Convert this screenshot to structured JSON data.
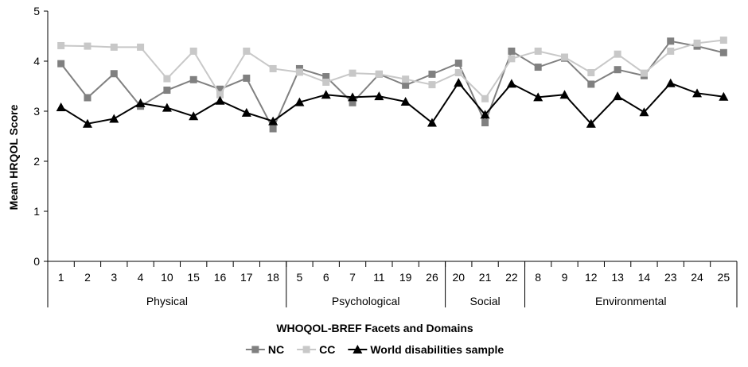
{
  "chart_data": {
    "type": "line",
    "title": "",
    "xlabel": "WHOQOL-BREF Facets and Domains",
    "ylabel": "Mean HRQOL Score",
    "ylim": [
      0,
      5
    ],
    "yticks": [
      "0",
      "1",
      "2",
      "3",
      "4",
      "5"
    ],
    "ytick_values": [
      0,
      1,
      2,
      3,
      4,
      5
    ],
    "grid": false,
    "categories": [
      "1",
      "2",
      "3",
      "4",
      "10",
      "15",
      "16",
      "17",
      "18",
      "5",
      "6",
      "7",
      "11",
      "19",
      "26",
      "20",
      "21",
      "22",
      "8",
      "9",
      "12",
      "13",
      "14",
      "23",
      "24",
      "25"
    ],
    "groups": [
      {
        "label": "Physical",
        "start": 0,
        "count": 9
      },
      {
        "label": "Psychological",
        "start": 9,
        "count": 6
      },
      {
        "label": "Social",
        "start": 15,
        "count": 3
      },
      {
        "label": "Environmental",
        "start": 18,
        "count": 8
      }
    ],
    "series": [
      {
        "name": "NC",
        "color": "#808080",
        "marker": "square",
        "values": [
          3.95,
          3.27,
          3.75,
          3.1,
          3.42,
          3.63,
          3.44,
          3.66,
          2.65,
          3.85,
          3.69,
          3.17,
          3.74,
          3.52,
          3.74,
          3.96,
          2.77,
          4.2,
          3.88,
          4.06,
          3.54,
          3.83,
          3.71,
          4.4,
          4.3,
          4.17
        ]
      },
      {
        "name": "CC",
        "color": "#c8c8c8",
        "marker": "square",
        "values": [
          4.31,
          4.3,
          4.28,
          4.28,
          3.65,
          4.2,
          3.33,
          4.2,
          3.85,
          3.78,
          3.58,
          3.76,
          3.74,
          3.64,
          3.53,
          3.77,
          3.25,
          4.05,
          4.2,
          4.08,
          3.77,
          4.14,
          3.76,
          4.2,
          4.36,
          4.42
        ]
      },
      {
        "name": "World disabilities sample",
        "color": "#000000",
        "marker": "triangle",
        "values": [
          3.08,
          2.75,
          2.85,
          3.16,
          3.07,
          2.9,
          3.21,
          2.97,
          2.8,
          3.18,
          3.33,
          3.28,
          3.3,
          3.19,
          2.77,
          3.57,
          2.93,
          3.55,
          3.28,
          3.33,
          2.75,
          3.3,
          2.98,
          3.56,
          3.36,
          3.29
        ]
      }
    ],
    "legend": {
      "position": "bottom"
    }
  }
}
